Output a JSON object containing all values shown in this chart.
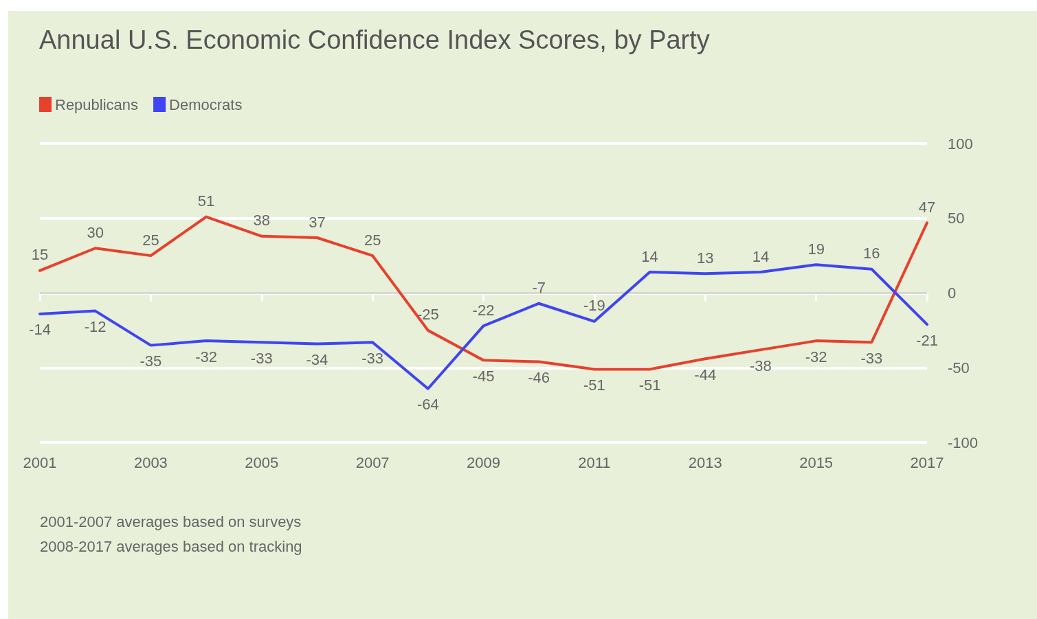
{
  "chart_data": {
    "type": "line",
    "title": "Annual U.S. Economic Confidence Index Scores, by Party",
    "x": [
      2001,
      2002,
      2003,
      2004,
      2005,
      2006,
      2007,
      2008,
      2009,
      2010,
      2011,
      2012,
      2013,
      2014,
      2015,
      2016,
      2017
    ],
    "series": [
      {
        "name": "Republicans",
        "color": "#e8402c",
        "values": [
          15,
          30,
          25,
          51,
          38,
          37,
          25,
          -25,
          -45,
          -46,
          -51,
          -51,
          -44,
          -38,
          -32,
          -33,
          47
        ]
      },
      {
        "name": "Democrats",
        "color": "#3f45f2",
        "values": [
          -14,
          -12,
          -35,
          -32,
          -33,
          -34,
          -33,
          -64,
          -22,
          -7,
          -19,
          14,
          13,
          14,
          19,
          16,
          -21
        ]
      }
    ],
    "xlim": [
      2001,
      2017
    ],
    "xticks": [
      2001,
      2003,
      2005,
      2007,
      2009,
      2011,
      2013,
      2015,
      2017
    ],
    "ylim": [
      -100,
      100
    ],
    "yticks": [
      -100,
      -50,
      0,
      50,
      100
    ],
    "grid": "y",
    "legend": "top left",
    "data_labels": true,
    "marker": "none",
    "line_style": "solid",
    "ref_lines": [
      {
        "axis": "y",
        "value": 0,
        "color": "#d8dad2"
      }
    ],
    "annotations": [
      "2001-2007 averages based on surveys",
      "2008-2017 averages based on tracking"
    ]
  }
}
